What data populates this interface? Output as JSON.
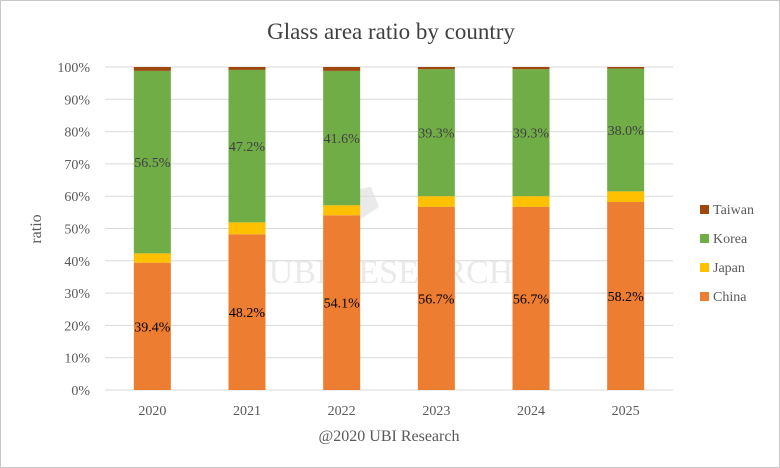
{
  "chart_data": {
    "type": "bar",
    "stacked": true,
    "title": "Glass area ratio by country",
    "xlabel": "@2020 UBI Research",
    "ylabel": "ratio",
    "ylim": [
      0,
      100
    ],
    "y_ticks": [
      "0%",
      "10%",
      "20%",
      "30%",
      "40%",
      "50%",
      "60%",
      "70%",
      "80%",
      "90%",
      "100%"
    ],
    "grid": true,
    "legend_position": "right",
    "categories": [
      "2020",
      "2021",
      "2022",
      "2023",
      "2024",
      "2025"
    ],
    "series": [
      {
        "name": "China",
        "color": "#ED7D31",
        "values": [
          39.4,
          48.2,
          54.1,
          56.7,
          56.7,
          58.2
        ],
        "labels": [
          "39.4%",
          "48.2%",
          "54.1%",
          "56.7%",
          "56.7%",
          "58.2%"
        ],
        "label_color": "#000000"
      },
      {
        "name": "Japan",
        "color": "#FFC000",
        "values": [
          2.9,
          3.7,
          3.1,
          3.3,
          3.3,
          3.3
        ]
      },
      {
        "name": "Korea",
        "color": "#70AD47",
        "values": [
          56.5,
          47.2,
          41.6,
          39.3,
          39.3,
          38.0
        ],
        "labels": [
          "56.5%",
          "47.2%",
          "41.6%",
          "39.3%",
          "39.3%",
          "38.0%"
        ],
        "label_color": "#404040"
      },
      {
        "name": "Taiwan",
        "color": "#9E480E",
        "values": [
          1.2,
          0.9,
          1.2,
          0.7,
          0.7,
          0.5
        ]
      }
    ],
    "legend_order": [
      "Taiwan",
      "Korea",
      "Japan",
      "China"
    ],
    "watermark": "UBI RESEARCH"
  }
}
